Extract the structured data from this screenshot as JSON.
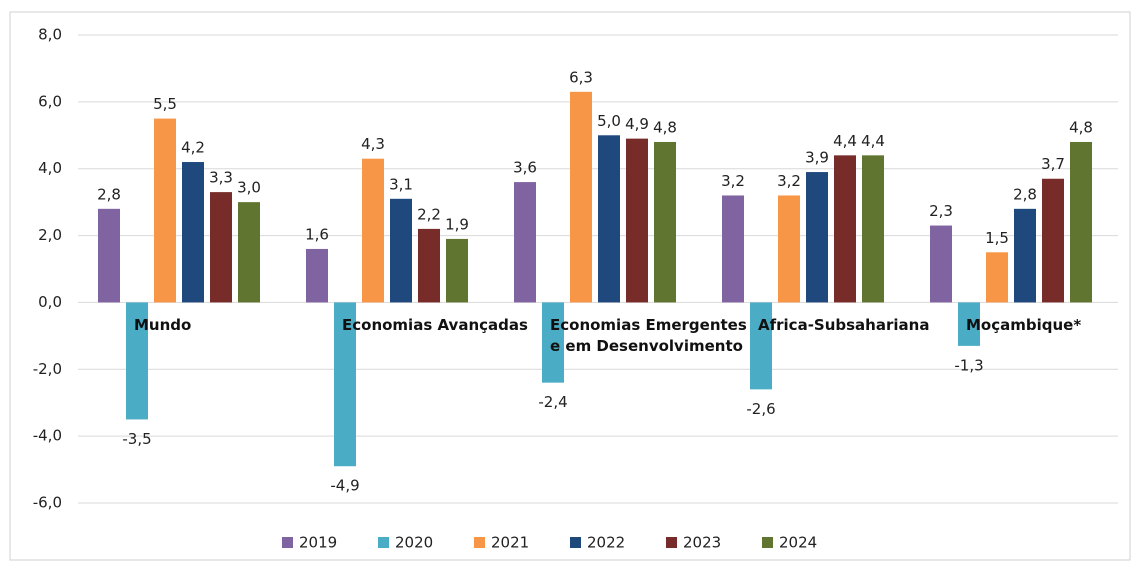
{
  "chart_data": {
    "type": "bar",
    "categories": [
      "Mundo",
      "Economias Avançadas",
      "Economias Emergentes e em Desenvolvimento",
      "Africa-Subsahariana",
      "Moçambique*"
    ],
    "series": [
      {
        "name": "2019",
        "color": "#8064a2",
        "values": [
          2.8,
          1.6,
          3.6,
          3.2,
          2.3
        ],
        "value_labels": [
          "2,8",
          "1,6",
          "3,6",
          "3,2",
          "2,3"
        ]
      },
      {
        "name": "2020",
        "color": "#4bacc6",
        "values": [
          -3.5,
          -4.9,
          -2.4,
          -2.6,
          -1.3
        ],
        "value_labels": [
          "-3,5",
          "-4,9",
          "-2,4",
          "-2,6",
          "-1,3"
        ]
      },
      {
        "name": "2021",
        "color": "#f79646",
        "values": [
          5.5,
          4.3,
          6.3,
          3.2,
          1.5
        ],
        "value_labels": [
          "5,5",
          "4,3",
          "6,3",
          "3,2",
          "1,5"
        ]
      },
      {
        "name": "2022",
        "color": "#1f497d",
        "values": [
          4.2,
          3.1,
          5.0,
          3.9,
          2.8
        ],
        "value_labels": [
          "4,2",
          "3,1",
          "5,0",
          "3,9",
          "2,8"
        ]
      },
      {
        "name": "2023",
        "color": "#772c2a",
        "values": [
          3.3,
          2.2,
          4.9,
          4.4,
          3.7
        ],
        "value_labels": [
          "3,3",
          "2,2",
          "4,9",
          "4,4",
          "3,7"
        ]
      },
      {
        "name": "2024",
        "color": "#5f7530",
        "values": [
          3.0,
          1.9,
          4.8,
          4.4,
          4.8
        ],
        "value_labels": [
          "3,0",
          "1,9",
          "4,8",
          "4,4",
          "4,8"
        ]
      }
    ],
    "ylim": [
      -6,
      8
    ],
    "yticks": [
      {
        "value": -6,
        "label": "-6,0"
      },
      {
        "value": -4,
        "label": "-4,0"
      },
      {
        "value": -2,
        "label": "-2,0"
      },
      {
        "value": 0,
        "label": "0,0"
      },
      {
        "value": 2,
        "label": "2,0"
      },
      {
        "value": 4,
        "label": "4,0"
      },
      {
        "value": 6,
        "label": "6,0"
      },
      {
        "value": 8,
        "label": "8,0"
      }
    ],
    "grid": true,
    "legend": "bottom"
  }
}
